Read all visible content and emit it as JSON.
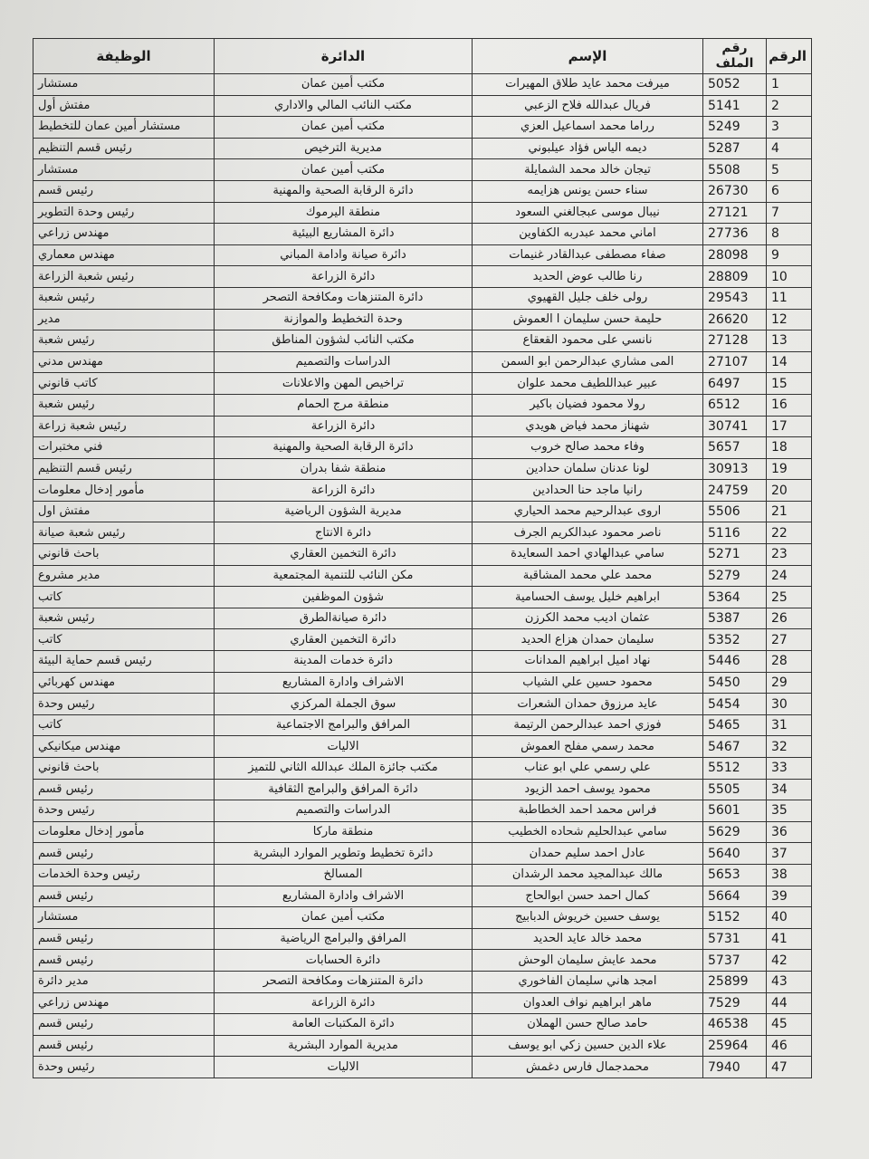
{
  "table": {
    "headers": [
      "الرقم",
      "رقم الملف",
      "الإسم",
      "الدائرة",
      "الوظيفة"
    ],
    "rows": [
      [
        1,
        5052,
        "ميرفت محمد عايد طلاق المهيرات",
        "مكتب أمين عمان",
        "مستشار"
      ],
      [
        2,
        5141,
        "فريال عبدالله فلاح الزعبي",
        "مكتب النائب المالي والاداري",
        "مفتش أول"
      ],
      [
        3,
        5249,
        "رراما محمد اسماعيل العزي",
        "مكتب أمين عمان",
        "مستشار أمين عمان للتخطيط"
      ],
      [
        4,
        5287,
        "ديمه الياس فؤاد عيلبوني",
        "مديرية الترخيص",
        "رئيس قسم التنظيم"
      ],
      [
        5,
        5508,
        "تيجان خالد محمد الشمايلة",
        "مكتب أمين عمان",
        "مستشار"
      ],
      [
        6,
        26730,
        "سناء حسن يونس هزايمه",
        "دائرة الرقابة الصحية والمهنية",
        "رئيس قسم"
      ],
      [
        7,
        27121,
        "نيبال موسى عبجالغني السعود",
        "منطقة اليرموك",
        "رئيس وحدة التطوير"
      ],
      [
        8,
        27736,
        "اماني محمد عبدربه الكفاوين",
        "دائرة المشاريع البيئية",
        "مهندس زراعي"
      ],
      [
        9,
        28098,
        "صفاء مصطفى عبدالقادر غنيمات",
        "دائرة صيانة وادامة المباني",
        "مهندس معماري"
      ],
      [
        10,
        28809,
        "رنا طالب عوض الحديد",
        "دائرة الزراعة",
        "رئيس شعبة الزراعة"
      ],
      [
        11,
        29543,
        "رولى خلف جليل القهيوي",
        "دائرة المتنزهات ومكافحة التصحر",
        "رئيس شعبة"
      ],
      [
        12,
        26620,
        "حليمة حسن سليمان ا العموش",
        "وحدة التخطيط والموازنة",
        "مدير"
      ],
      [
        13,
        27128,
        "نانسي على محمود القعقاع",
        "مكتب النائب لشؤون المناطق",
        "رئيس شعبة"
      ],
      [
        14,
        27107,
        "المى مشاري عبدالرحمن ابو السمن",
        "الدراسات والتصميم",
        "مهندس مدني"
      ],
      [
        15,
        6497,
        "عبير عبداللطيف محمد علوان",
        "تراخيص المهن والاعلانات",
        "كاتب قانوني"
      ],
      [
        16,
        6512,
        "رولا محمود فضيان باكير",
        "منطقة مرج الحمام",
        "رئيس شعبة"
      ],
      [
        17,
        30741,
        "شهناز محمد فياض هويدي",
        "دائرة الزراعة",
        "رئيس شعبة زراعة"
      ],
      [
        18,
        5657,
        "وفاء محمد صالح خروب",
        "دائرة الرقابة الصحية والمهنية",
        "فني مختبرات"
      ],
      [
        19,
        30913,
        "لونا عدنان سلمان حدادين",
        "منطقة شفا بدران",
        "رئيس قسم التنظيم"
      ],
      [
        20,
        24759,
        "رانيا ماجد حنا الحدادين",
        "دائرة الزراعة",
        "مأمور إدخال معلومات"
      ],
      [
        21,
        5506,
        "اروى عبدالرحيم محمد الحياري",
        "مديرية الشؤون الرياضية",
        "مفتش اول"
      ],
      [
        22,
        5116,
        "ناصر محمود عبدالكريم الجرف",
        "دائرة الانتاج",
        "رئيس شعبة صيانة"
      ],
      [
        23,
        5271,
        "سامي عبدالهادي احمد السعايدة",
        "دائرة التخمين العقاري",
        "باحث قانوني"
      ],
      [
        24,
        5279,
        "محمد علي محمد المشاقبة",
        "مكن النائب للتنمية المجتمعية",
        "مدير مشروع"
      ],
      [
        25,
        5364,
        "ابراهيم خليل يوسف الحسامية",
        "شؤون الموظفين",
        "كاتب"
      ],
      [
        26,
        5387,
        "عثمان اديب محمد الكرزن",
        "دائرة صيانةالطرق",
        "رئيس شعبة"
      ],
      [
        27,
        5352,
        "سليمان حمدان هزاع الحديد",
        "دائرة التخمين العقاري",
        "كاتب"
      ],
      [
        28,
        5446,
        "نهاد اميل ابراهيم المدانات",
        "دائرة خدمات المدينة",
        "رئيس قسم حماية البيئة"
      ],
      [
        29,
        5450,
        "محمود حسين علي الشياب",
        "الاشراف وادارة المشاريع",
        "مهندس كهربائي"
      ],
      [
        30,
        5454,
        "عايد مرزوق حمدان الشعرات",
        "سوق الجملة المركزي",
        "رئيس وحدة"
      ],
      [
        31,
        5465,
        "فوزي احمد عبدالرحمن الرتيمة",
        "المرافق والبرامج الاجتماعية",
        "كاتب"
      ],
      [
        32,
        5467,
        "محمد رسمي مفلح العموش",
        "الاليات",
        "مهندس ميكانيكي"
      ],
      [
        33,
        5512,
        "علي رسمي علي ابو عناب",
        "مكتب جائزة الملك عبدالله الثاني للتميز",
        "باحث قانوني"
      ],
      [
        34,
        5505,
        "محمود يوسف احمد الزيود",
        "دائرة المرافق والبرامج الثقافية",
        "رئيس قسم"
      ],
      [
        35,
        5601,
        "فراس محمد احمد الخطاطبة",
        "الدراسات والتصميم",
        "رئيس وحدة"
      ],
      [
        36,
        5629,
        "سامي عبدالحليم شحاده الخطيب",
        "منطقة ماركا",
        "مأمور إدخال معلومات"
      ],
      [
        37,
        5640,
        "عادل احمد سليم حمدان",
        "دائرة تخطيط وتطوير الموارد البشرية",
        "رئيس قسم"
      ],
      [
        38,
        5653,
        "مالك عبدالمجيد محمد الرشدان",
        "المسالخ",
        "رئيس وحدة الخدمات"
      ],
      [
        39,
        5664,
        "كمال احمد حسن ابوالحاج",
        "الاشراف وادارة المشاريع",
        "رئيس قسم"
      ],
      [
        40,
        5152,
        "يوسف حسين خريوش الدبابيج",
        "مكتب أمين عمان",
        "مستشار"
      ],
      [
        41,
        5731,
        "محمد خالد عايد الحديد",
        "المرافق والبرامج الرياضية",
        "رئيس قسم"
      ],
      [
        42,
        5737,
        "محمد عايش سليمان الوحش",
        "دائرة الحسابات",
        "رئيس قسم"
      ],
      [
        43,
        25899,
        "امجد هاني سليمان الفاخوري",
        "دائرة المتنزهات ومكافحة التصحر",
        "مدير دائرة"
      ],
      [
        44,
        7529,
        "ماهر ابراهيم نواف العدوان",
        "دائرة الزراعة",
        "مهندس زراعي"
      ],
      [
        45,
        46538,
        "حامد صالح حسن الهملان",
        "دائرة المكتبات العامة",
        "رئيس قسم"
      ],
      [
        46,
        25964,
        "علاء الدين حسين زكي ابو يوسف",
        "مديرية الموارد البشرية",
        "رئيس قسم"
      ],
      [
        47,
        7940,
        "محمدجمال فارس دغمش",
        "الاليات",
        "رئيس وحدة"
      ]
    ]
  }
}
